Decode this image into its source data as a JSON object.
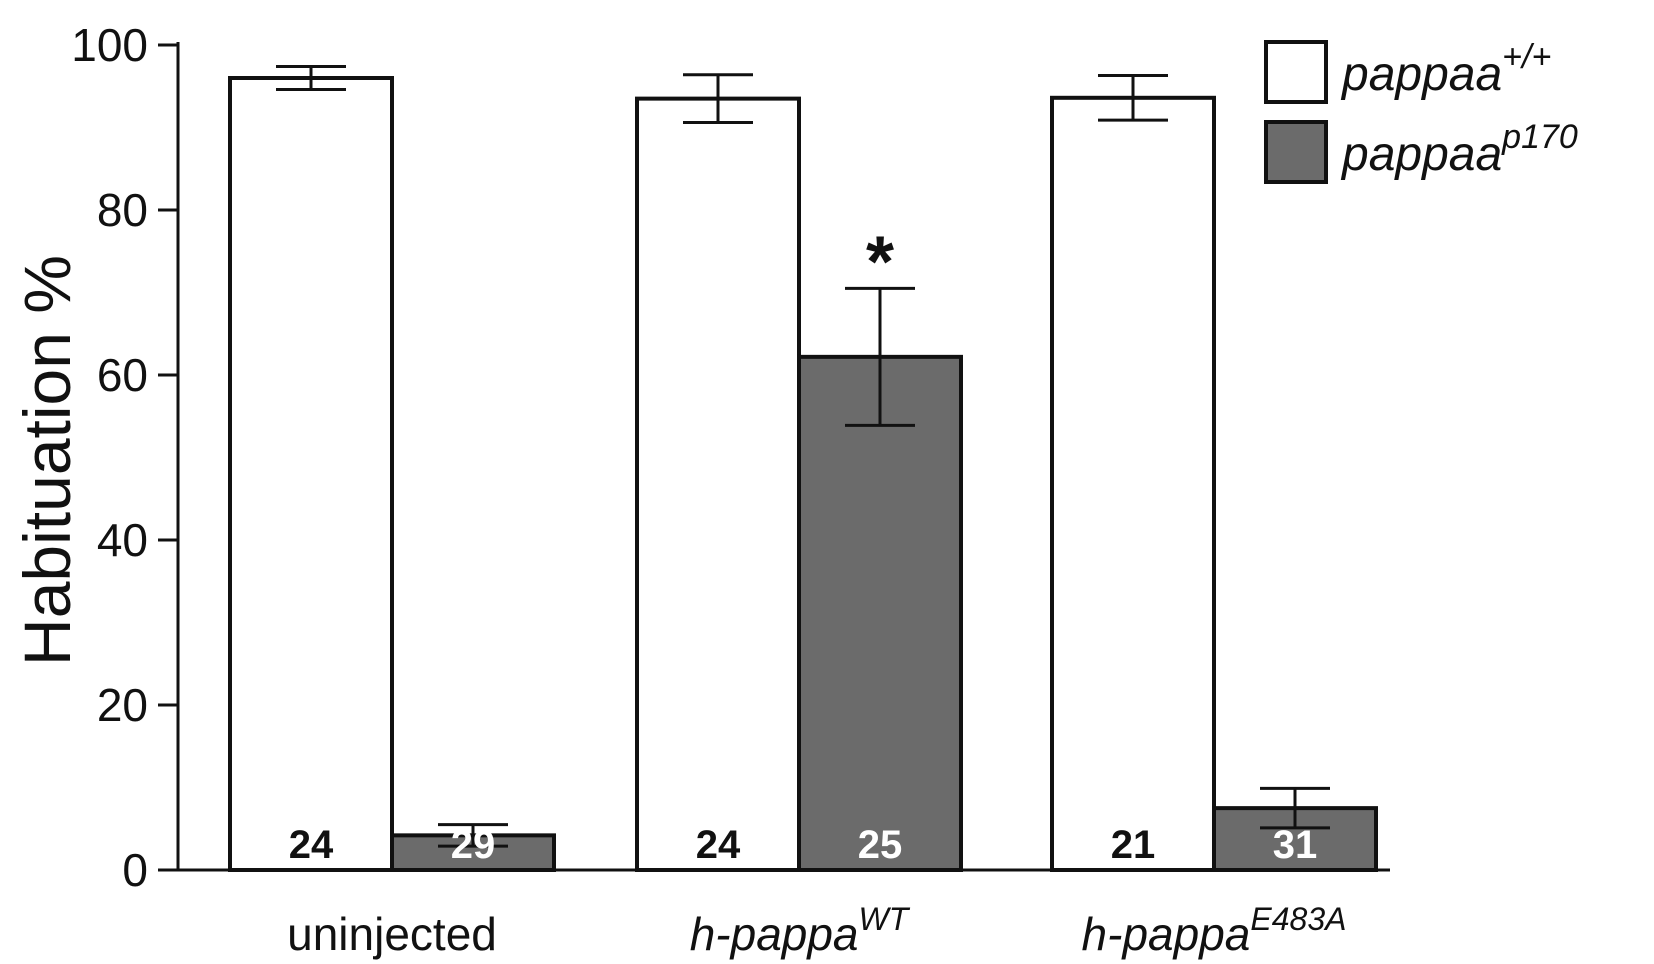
{
  "chart_data": {
    "type": "bar",
    "ylabel": "Habituation %",
    "xlabel": "",
    "ylim": [
      0,
      100
    ],
    "yticks": [
      "0",
      "20",
      "40",
      "60",
      "80",
      "100"
    ],
    "categories": [
      {
        "base": "uninjected",
        "sup": ""
      },
      {
        "base": "h-pappa",
        "sup": "WT"
      },
      {
        "base": "h-pappa",
        "sup": "E483A"
      }
    ],
    "series": [
      {
        "legend_base": "pappaa",
        "legend_sup": "+/+",
        "color": "#ffffff",
        "n_label_color": "#111111",
        "values": [
          96,
          93.5,
          93.6
        ],
        "errors": [
          1.4,
          2.9,
          2.7
        ],
        "n": [
          "24",
          "24",
          "21"
        ]
      },
      {
        "legend_base": "pappaa",
        "legend_sup": "p170",
        "color": "#6b6b6b",
        "n_label_color": "#ffffff",
        "values": [
          4.2,
          62.2,
          7.5
        ],
        "errors": [
          1.3,
          8.3,
          2.4
        ],
        "n": [
          "29",
          "25",
          "31"
        ]
      }
    ],
    "annotations": [
      {
        "text": "*",
        "category": 1,
        "series": 1
      }
    ],
    "grid": false,
    "legend_position": "top-right"
  }
}
